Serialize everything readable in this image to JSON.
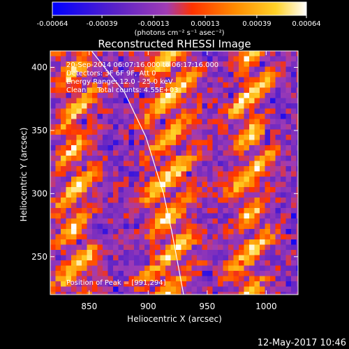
{
  "chart_data": {
    "type": "heatmap",
    "title": "Reconstructed RHESSI Image",
    "xlabel": "Heliocentric X (arcsec)",
    "ylabel": "Heliocentric Y (arcsec)",
    "x_ticks": [
      850,
      900,
      950,
      1000
    ],
    "y_ticks": [
      250,
      300,
      350,
      400
    ],
    "xlim": [
      817,
      1027
    ],
    "ylim": [
      220,
      413
    ],
    "colorbar": {
      "range": [
        -0.00064,
        0.00064
      ],
      "tick_labels": [
        "-0.00064",
        "-0.00039",
        "-0.00013",
        "0.00013",
        "0.00039",
        "0.00064"
      ],
      "tick_values": [
        -0.00064,
        -0.00039,
        -0.00013,
        0.00013,
        0.00039,
        0.00064
      ],
      "unit_label": "(photons cm⁻² s⁻¹ asec⁻²)",
      "colors": [
        "#0000ff",
        "#5a22c8",
        "#a03cb4",
        "#ff3200",
        "#ff8c00",
        "#ffd228",
        "#ffffff"
      ]
    },
    "annotations": [
      "20-Sep-2014 06:07:16.000 to 06:17:16.000",
      "Detectors: 3F 6F 9F, Att 0",
      "Energy Range: 12.0 - 25.0 keV",
      "Clean     Total counts: 4.55E+03"
    ],
    "peak_label": "Position of Peak = [991,294]",
    "peak": [
      991,
      294
    ],
    "bright_columns_x": [
      838,
      918,
      987
    ],
    "limb_curve": [
      [
        852,
        413
      ],
      [
        880,
        380
      ],
      [
        898,
        345
      ],
      [
        913,
        300
      ],
      [
        920,
        270
      ],
      [
        930,
        220
      ]
    ],
    "grid": false
  },
  "timestamp": "12-May-2017 10:46"
}
